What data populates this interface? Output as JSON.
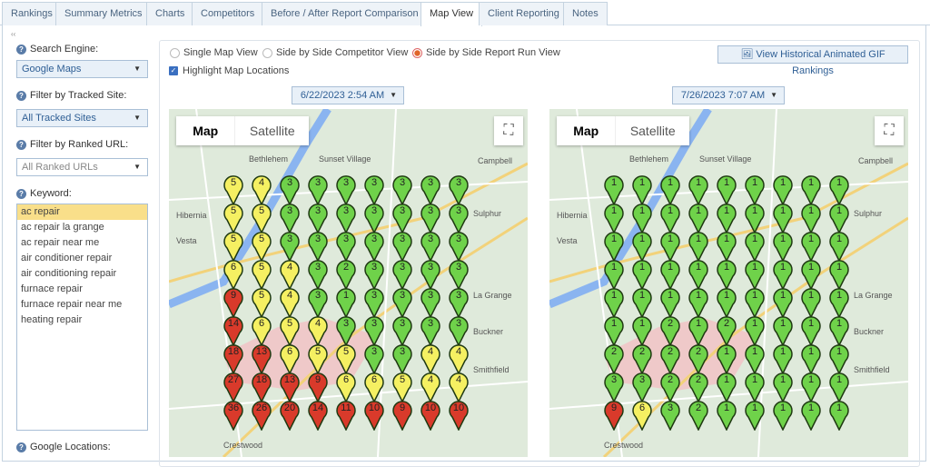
{
  "tabs": [
    "Rankings",
    "Summary Metrics",
    "Charts",
    "Competitors",
    "Before / After Report Comparison",
    "Map View",
    "Client Reporting",
    "Notes"
  ],
  "active_tab": "Map View",
  "sidebar": {
    "collapse": "‹‹",
    "search_engine_label": "Search Engine:",
    "search_engine_value": "Google Maps",
    "tracked_site_label": "Filter by Tracked Site:",
    "tracked_site_value": "All Tracked Sites",
    "ranked_url_label": "Filter by Ranked URL:",
    "ranked_url_placeholder": "All Ranked URLs",
    "keyword_label": "Keyword:",
    "keywords": [
      "ac repair",
      "ac repair la grange",
      "ac repair near me",
      "air conditioner repair",
      "air conditioning repair",
      "furnace repair",
      "furnace repair near me",
      "heating repair"
    ],
    "selected_keyword": "ac repair",
    "locations_label": "Google Locations:"
  },
  "view_options": {
    "single": "Single Map View",
    "competitor": "Side by Side Competitor View",
    "report_run": "Side by Side Report Run View",
    "selected": "report_run"
  },
  "highlight_label": "Highlight Map Locations",
  "highlight_checked": true,
  "gif_button": "View Historical Animated GIF Rankings",
  "map_controls": {
    "map": "Map",
    "satellite": "Satellite"
  },
  "towns": [
    "Bethlehem",
    "Hibernia",
    "Vesta",
    "Sunset Village",
    "Sulphur",
    "Campbell",
    "La Grange",
    "Buckner",
    "Smithfield",
    "Crestwood"
  ],
  "colors": {
    "green": "#6fd24a",
    "yellow": "#f5f062",
    "red": "#d93a2b"
  },
  "maps": [
    {
      "date": "6/22/2023 2:54 AM",
      "ranks": [
        [
          5,
          4,
          3,
          3,
          3,
          3,
          3,
          3,
          3
        ],
        [
          5,
          5,
          3,
          3,
          3,
          3,
          3,
          3,
          3
        ],
        [
          5,
          5,
          3,
          3,
          3,
          3,
          3,
          3,
          3
        ],
        [
          6,
          5,
          4,
          3,
          2,
          3,
          3,
          3,
          3
        ],
        [
          9,
          5,
          4,
          3,
          1,
          3,
          3,
          3,
          3
        ],
        [
          14,
          6,
          5,
          4,
          3,
          3,
          3,
          3,
          3
        ],
        [
          18,
          13,
          6,
          5,
          5,
          3,
          3,
          4,
          4
        ],
        [
          27,
          18,
          13,
          9,
          6,
          6,
          5,
          4,
          4
        ],
        [
          36,
          26,
          20,
          14,
          11,
          10,
          9,
          10,
          10
        ]
      ]
    },
    {
      "date": "7/26/2023 7:07 AM",
      "ranks": [
        [
          1,
          1,
          1,
          1,
          1,
          1,
          1,
          1,
          1
        ],
        [
          1,
          1,
          1,
          1,
          1,
          1,
          1,
          1,
          1
        ],
        [
          1,
          1,
          1,
          1,
          1,
          1,
          1,
          1,
          1
        ],
        [
          1,
          1,
          1,
          1,
          1,
          1,
          1,
          1,
          1
        ],
        [
          1,
          1,
          1,
          1,
          1,
          1,
          1,
          1,
          1
        ],
        [
          1,
          1,
          2,
          1,
          2,
          1,
          1,
          1,
          1
        ],
        [
          2,
          2,
          2,
          2,
          1,
          1,
          1,
          1,
          1
        ],
        [
          3,
          3,
          2,
          2,
          1,
          1,
          1,
          1,
          1
        ],
        [
          9,
          6,
          3,
          2,
          1,
          1,
          1,
          1,
          1
        ]
      ]
    }
  ]
}
